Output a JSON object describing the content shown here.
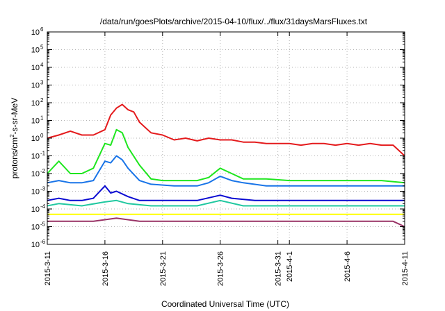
{
  "chart_data": {
    "type": "line",
    "title": "/data/run/goesPlots/archive/2015-04-10/flux/../flux/31daysMarsFluxes.txt",
    "xlabel": "Coordinated Universal Time (UTC)",
    "ylabel": {
      "prefix": "protons/cm",
      "superscript": "2",
      "suffix": "-s-sr-MeV"
    },
    "y_scale": "log",
    "ylim": [
      1e-06,
      1000000.0
    ],
    "y_ticks": [
      {
        "base": "10",
        "exp": "-6",
        "value": 1e-06
      },
      {
        "base": "10",
        "exp": "-5",
        "value": 1e-05
      },
      {
        "base": "10",
        "exp": "-4",
        "value": 0.0001
      },
      {
        "base": "10",
        "exp": "-3",
        "value": 0.001
      },
      {
        "base": "10",
        "exp": "-2",
        "value": 0.01
      },
      {
        "base": "10",
        "exp": "-1",
        "value": 0.1
      },
      {
        "base": "10",
        "exp": "0",
        "value": 1
      },
      {
        "base": "10",
        "exp": "1",
        "value": 10
      },
      {
        "base": "10",
        "exp": "2",
        "value": 100
      },
      {
        "base": "10",
        "exp": "3",
        "value": 1000
      },
      {
        "base": "10",
        "exp": "4",
        "value": 10000
      },
      {
        "base": "10",
        "exp": "5",
        "value": 100000
      },
      {
        "base": "10",
        "exp": "6",
        "value": 1000000
      }
    ],
    "x_start": "2015-03-11",
    "x_end": "2015-04-11",
    "x_ticks": [
      "2015-3-11",
      "2015-3-16",
      "2015-3-21",
      "2015-3-26",
      "2015-3-31",
      "2015-4-1",
      "2015-4-6",
      "2015-4-11"
    ],
    "x_tick_dates": [
      "2015-03-11",
      "2015-03-16",
      "2015-03-21",
      "2015-03-26",
      "2015-03-31",
      "2015-04-01",
      "2015-04-06",
      "2015-04-11"
    ],
    "grid": true,
    "legend": "none",
    "series": [
      {
        "color": "#e41a1c",
        "points": [
          [
            "2015-03-11",
            1.0
          ],
          [
            "2015-03-12",
            1.5
          ],
          [
            "2015-03-13",
            2.5
          ],
          [
            "2015-03-14",
            1.5
          ],
          [
            "2015-03-15",
            1.5
          ],
          [
            "2015-03-16",
            3
          ],
          [
            "2015-03-16T12:00",
            20
          ],
          [
            "2015-03-17",
            50
          ],
          [
            "2015-03-17T12:00",
            80
          ],
          [
            "2015-03-18",
            40
          ],
          [
            "2015-03-18T12:00",
            30
          ],
          [
            "2015-03-19",
            8
          ],
          [
            "2015-03-20",
            2
          ],
          [
            "2015-03-21",
            1.5
          ],
          [
            "2015-03-22",
            0.8
          ],
          [
            "2015-03-23",
            1.0
          ],
          [
            "2015-03-24",
            0.7
          ],
          [
            "2015-03-25",
            1.0
          ],
          [
            "2015-03-26",
            0.8
          ],
          [
            "2015-03-27",
            0.8
          ],
          [
            "2015-03-28",
            0.6
          ],
          [
            "2015-03-29",
            0.6
          ],
          [
            "2015-03-30",
            0.5
          ],
          [
            "2015-03-31",
            0.5
          ],
          [
            "2015-04-01",
            0.5
          ],
          [
            "2015-04-02",
            0.4
          ],
          [
            "2015-04-03",
            0.5
          ],
          [
            "2015-04-04",
            0.5
          ],
          [
            "2015-04-05",
            0.4
          ],
          [
            "2015-04-06",
            0.5
          ],
          [
            "2015-04-07",
            0.4
          ],
          [
            "2015-04-08",
            0.5
          ],
          [
            "2015-04-09",
            0.4
          ],
          [
            "2015-04-10",
            0.4
          ],
          [
            "2015-04-11",
            0.1
          ]
        ]
      },
      {
        "color": "#1ee61e",
        "points": [
          [
            "2015-03-11",
            0.01
          ],
          [
            "2015-03-12",
            0.05
          ],
          [
            "2015-03-13",
            0.01
          ],
          [
            "2015-03-14",
            0.01
          ],
          [
            "2015-03-15",
            0.02
          ],
          [
            "2015-03-16",
            0.5
          ],
          [
            "2015-03-16T12:00",
            0.4
          ],
          [
            "2015-03-17",
            3
          ],
          [
            "2015-03-17T12:00",
            2
          ],
          [
            "2015-03-18",
            0.3
          ],
          [
            "2015-03-19",
            0.03
          ],
          [
            "2015-03-20",
            0.005
          ],
          [
            "2015-03-21",
            0.004
          ],
          [
            "2015-03-22",
            0.004
          ],
          [
            "2015-03-24",
            0.004
          ],
          [
            "2015-03-25",
            0.006
          ],
          [
            "2015-03-26",
            0.02
          ],
          [
            "2015-03-27",
            0.01
          ],
          [
            "2015-03-28",
            0.005
          ],
          [
            "2015-03-30",
            0.005
          ],
          [
            "2015-04-01",
            0.004
          ],
          [
            "2015-04-03",
            0.004
          ],
          [
            "2015-04-05",
            0.004
          ],
          [
            "2015-04-07",
            0.004
          ],
          [
            "2015-04-09",
            0.004
          ],
          [
            "2015-04-11",
            0.003
          ]
        ]
      },
      {
        "color": "#1874e8",
        "points": [
          [
            "2015-03-11",
            0.003
          ],
          [
            "2015-03-12",
            0.004
          ],
          [
            "2015-03-13",
            0.003
          ],
          [
            "2015-03-14",
            0.003
          ],
          [
            "2015-03-15",
            0.004
          ],
          [
            "2015-03-16",
            0.05
          ],
          [
            "2015-03-16T12:00",
            0.04
          ],
          [
            "2015-03-17",
            0.1
          ],
          [
            "2015-03-17T12:00",
            0.06
          ],
          [
            "2015-03-18",
            0.02
          ],
          [
            "2015-03-19",
            0.004
          ],
          [
            "2015-03-20",
            0.0025
          ],
          [
            "2015-03-22",
            0.002
          ],
          [
            "2015-03-24",
            0.002
          ],
          [
            "2015-03-25",
            0.003
          ],
          [
            "2015-03-26",
            0.007
          ],
          [
            "2015-03-27",
            0.004
          ],
          [
            "2015-03-28",
            0.003
          ],
          [
            "2015-03-30",
            0.002
          ],
          [
            "2015-04-01",
            0.002
          ],
          [
            "2015-04-03",
            0.002
          ],
          [
            "2015-04-05",
            0.002
          ],
          [
            "2015-04-07",
            0.002
          ],
          [
            "2015-04-09",
            0.002
          ],
          [
            "2015-04-11",
            0.002
          ]
        ]
      },
      {
        "color": "#0a0ad2",
        "points": [
          [
            "2015-03-11",
            0.0003
          ],
          [
            "2015-03-12",
            0.0004
          ],
          [
            "2015-03-13",
            0.0003
          ],
          [
            "2015-03-14",
            0.0003
          ],
          [
            "2015-03-15",
            0.0004
          ],
          [
            "2015-03-16",
            0.002
          ],
          [
            "2015-03-16T12:00",
            0.0008
          ],
          [
            "2015-03-17",
            0.001
          ],
          [
            "2015-03-18",
            0.0005
          ],
          [
            "2015-03-19",
            0.0003
          ],
          [
            "2015-03-20",
            0.0003
          ],
          [
            "2015-03-22",
            0.0003
          ],
          [
            "2015-03-24",
            0.0003
          ],
          [
            "2015-03-26",
            0.0006
          ],
          [
            "2015-03-27",
            0.0004
          ],
          [
            "2015-03-29",
            0.0003
          ],
          [
            "2015-04-01",
            0.0003
          ],
          [
            "2015-04-04",
            0.0003
          ],
          [
            "2015-04-07",
            0.0003
          ],
          [
            "2015-04-09",
            0.0003
          ],
          [
            "2015-04-11",
            0.0003
          ]
        ]
      },
      {
        "color": "#20c8a0",
        "points": [
          [
            "2015-03-11",
            0.00015
          ],
          [
            "2015-03-12",
            0.0002
          ],
          [
            "2015-03-14",
            0.00015
          ],
          [
            "2015-03-16",
            0.00025
          ],
          [
            "2015-03-17",
            0.0003
          ],
          [
            "2015-03-18",
            0.0002
          ],
          [
            "2015-03-20",
            0.00015
          ],
          [
            "2015-03-22",
            0.00015
          ],
          [
            "2015-03-24",
            0.00015
          ],
          [
            "2015-03-26",
            0.0003
          ],
          [
            "2015-03-28",
            0.00015
          ],
          [
            "2015-03-30",
            0.00015
          ],
          [
            "2015-04-01",
            0.00015
          ],
          [
            "2015-04-03",
            0.00015
          ],
          [
            "2015-04-05",
            0.00015
          ],
          [
            "2015-04-07",
            0.00015
          ],
          [
            "2015-04-09",
            0.00015
          ],
          [
            "2015-04-11",
            0.00015
          ]
        ]
      },
      {
        "color": "#ffff00",
        "points": [
          [
            "2015-03-11",
            5e-05
          ],
          [
            "2015-03-13",
            5e-05
          ],
          [
            "2015-03-15",
            5e-05
          ],
          [
            "2015-03-17",
            5e-05
          ],
          [
            "2015-03-19",
            5e-05
          ],
          [
            "2015-03-21",
            5e-05
          ],
          [
            "2015-03-23",
            5e-05
          ],
          [
            "2015-03-25",
            5e-05
          ],
          [
            "2015-03-27",
            5e-05
          ],
          [
            "2015-03-29",
            5e-05
          ],
          [
            "2015-03-31",
            5e-05
          ],
          [
            "2015-04-02",
            5e-05
          ],
          [
            "2015-04-04",
            5e-05
          ],
          [
            "2015-04-06",
            5e-05
          ],
          [
            "2015-04-08",
            5e-05
          ],
          [
            "2015-04-10",
            5e-05
          ],
          [
            "2015-04-11",
            5e-05
          ]
        ]
      },
      {
        "color": "#993366",
        "points": [
          [
            "2015-03-11",
            2e-05
          ],
          [
            "2015-03-13",
            2e-05
          ],
          [
            "2015-03-15",
            2e-05
          ],
          [
            "2015-03-17",
            3e-05
          ],
          [
            "2015-03-19",
            2e-05
          ],
          [
            "2015-03-21",
            2e-05
          ],
          [
            "2015-03-23",
            2e-05
          ],
          [
            "2015-03-25",
            2e-05
          ],
          [
            "2015-03-27",
            2e-05
          ],
          [
            "2015-03-29",
            2e-05
          ],
          [
            "2015-03-31",
            2e-05
          ],
          [
            "2015-04-02",
            2e-05
          ],
          [
            "2015-04-04",
            2e-05
          ],
          [
            "2015-04-06",
            2e-05
          ],
          [
            "2015-04-08",
            2e-05
          ],
          [
            "2015-04-10",
            2e-05
          ],
          [
            "2015-04-11",
            1e-05
          ]
        ]
      }
    ]
  }
}
